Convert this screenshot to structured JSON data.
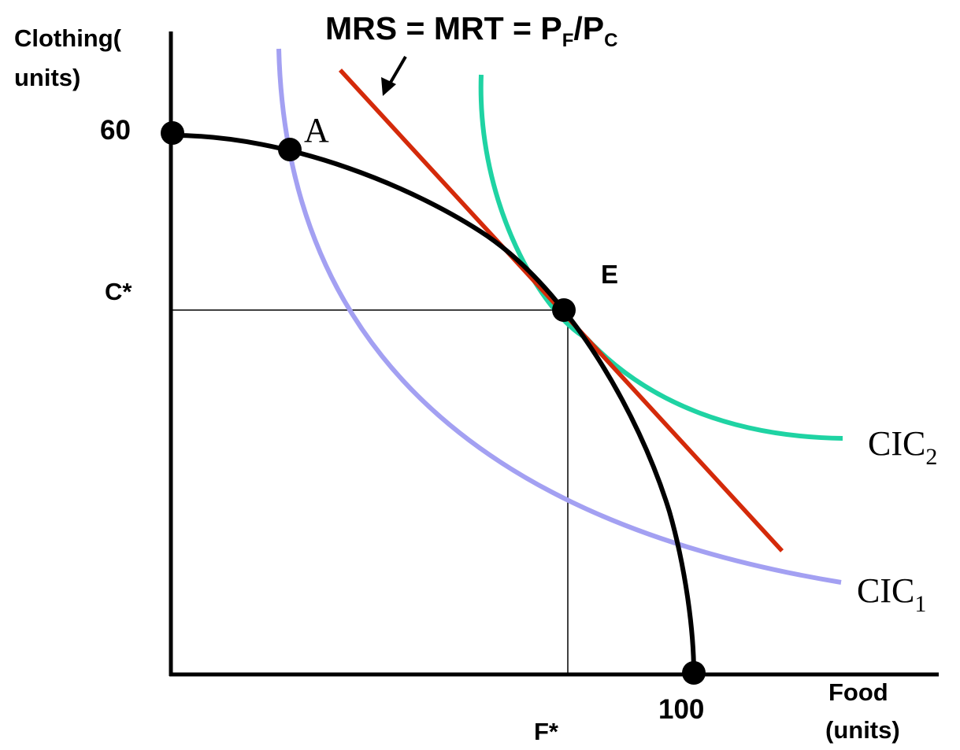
{
  "diagram": {
    "title": {
      "main": "MRS = MRT = P",
      "sub1": "F",
      "slash": "/P",
      "sub2": "C"
    },
    "axes": {
      "y_label_line1": "Clothing(",
      "y_label_line2": "units)",
      "x_label_line1": "Food",
      "x_label_line2": "(units)"
    },
    "ticks": {
      "y_max": "60",
      "y_star": "C*",
      "x_max": "100",
      "x_star": "F*"
    },
    "points": {
      "a": "A",
      "e": "E"
    },
    "curves": {
      "cic1": {
        "label": "CIC",
        "sub": "1",
        "color": "#a3a0f2"
      },
      "cic2": {
        "label": "CIC",
        "sub": "2",
        "color": "#1fd3a3"
      },
      "ppf": {
        "color": "#000000"
      },
      "price_line": {
        "color": "#d42a0a"
      }
    }
  }
}
